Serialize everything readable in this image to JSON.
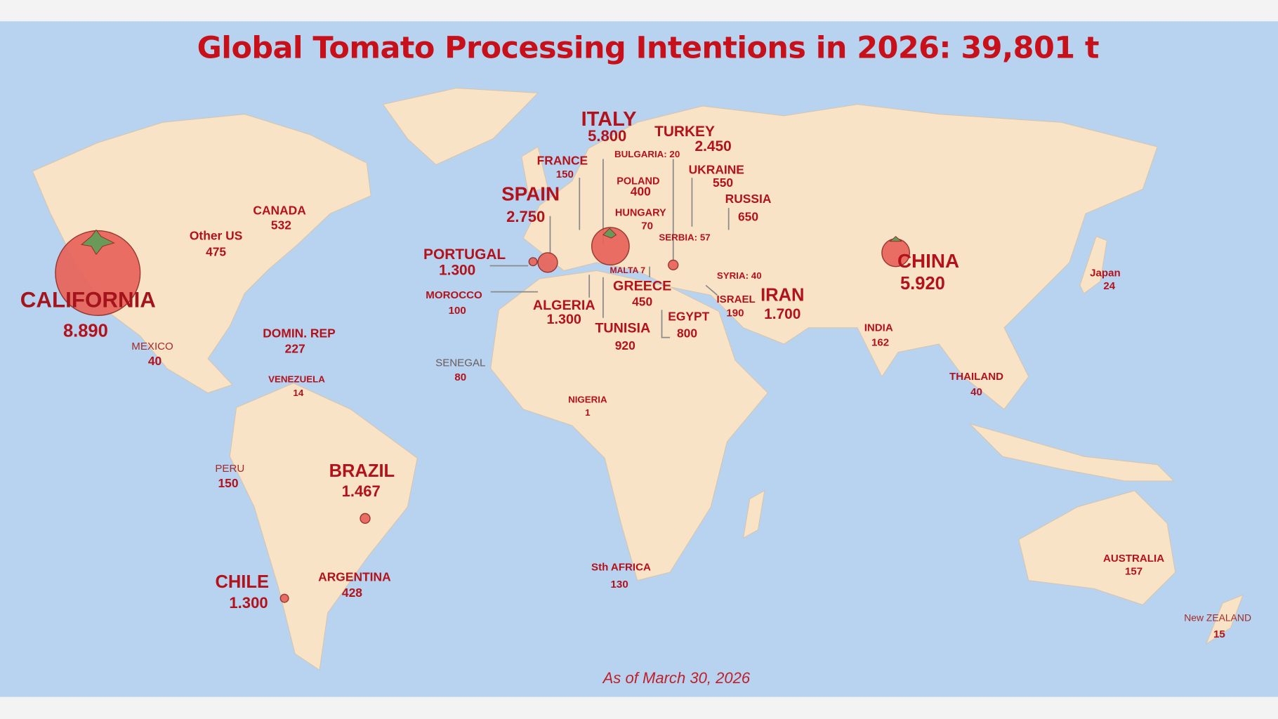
{
  "title": "Global Tomato Processing Intentions in 2026: 39,801 t",
  "footer": "As of March 30, 2026",
  "colors": {
    "ocean": "#b7d3ef",
    "land": "#f9e3c7",
    "text": "#b3121b",
    "tomato": "#e8645a"
  },
  "regions": [
    {
      "name": "CALIFORNIA",
      "value": "8.890"
    },
    {
      "name": "Other US",
      "value": "475"
    },
    {
      "name": "CANADA",
      "value": "532"
    },
    {
      "name": "MEXICO",
      "value": "40"
    },
    {
      "name": "DOMIN. REP",
      "value": "227"
    },
    {
      "name": "VENEZUELA",
      "value": "14"
    },
    {
      "name": "PERU",
      "value": "150"
    },
    {
      "name": "BRAZIL",
      "value": "1.467"
    },
    {
      "name": "CHILE",
      "value": "1.300"
    },
    {
      "name": "ARGENTINA",
      "value": "428"
    },
    {
      "name": "ITALY",
      "value": "5.800"
    },
    {
      "name": "TURKEY",
      "value": "2.450"
    },
    {
      "name": "FRANCE",
      "value": "150"
    },
    {
      "name": "POLAND",
      "value": "400"
    },
    {
      "name": "UKRAINE",
      "value": "550"
    },
    {
      "name": "SPAIN",
      "value": "2.750"
    },
    {
      "name": "HUNGARY",
      "value": "70"
    },
    {
      "name": "RUSSIA",
      "value": "650"
    },
    {
      "name": "PORTUGAL",
      "value": "1.300"
    },
    {
      "name": "GREECE",
      "value": "450"
    },
    {
      "name": "MOROCCO",
      "value": "100"
    },
    {
      "name": "ALGERIA",
      "value": "1.300"
    },
    {
      "name": "ISRAEL",
      "value": "190"
    },
    {
      "name": "IRAN",
      "value": "1.700"
    },
    {
      "name": "EGYPT",
      "value": "800"
    },
    {
      "name": "TUNISIA",
      "value": "920"
    },
    {
      "name": "SENEGAL",
      "value": "80"
    },
    {
      "name": "NIGERIA",
      "value": "1"
    },
    {
      "name": "CHINA",
      "value": "5.920"
    },
    {
      "name": "Japan",
      "value": "24"
    },
    {
      "name": "INDIA",
      "value": "162"
    },
    {
      "name": "THAILAND",
      "value": "40"
    },
    {
      "name": "Sth AFRICA",
      "value": "130"
    },
    {
      "name": "AUSTRALIA",
      "value": "157"
    },
    {
      "name": "New ZEALAND",
      "value": "15"
    }
  ],
  "inline_labels": {
    "bulgaria": "BULGARIA: 20",
    "serbia": "SERBIA: 57",
    "malta": "MALTA 7",
    "syria": "SYRIA: 40"
  }
}
